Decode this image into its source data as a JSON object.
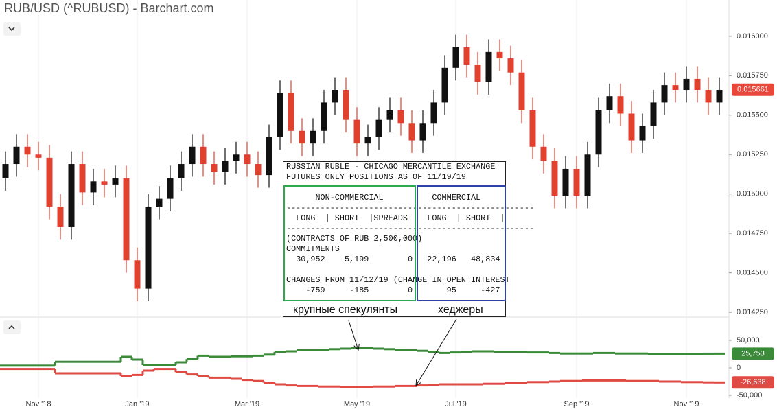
{
  "chart_data": [
    {
      "type": "candlestick",
      "title": "RUB/USD (^RUBUSD) - Barchart.com",
      "categories": [
        null,
        null,
        null,
        "Nov '18",
        null,
        null,
        null,
        null,
        null,
        null,
        null,
        null,
        "Jan '19",
        null,
        null,
        null,
        null,
        null,
        null,
        null,
        null,
        null,
        "Mar '19",
        null,
        null,
        null,
        null,
        null,
        null,
        null,
        null,
        null,
        "May '19",
        null,
        null,
        null,
        null,
        null,
        null,
        null,
        null,
        "Jul '19",
        null,
        null,
        null,
        null,
        null,
        null,
        null,
        null,
        null,
        null,
        "Sep '19",
        null,
        null,
        null,
        null,
        null,
        null,
        null,
        null,
        null,
        "Nov '19",
        null,
        null,
        null
      ],
      "open": [
        0.0151,
        0.01519,
        0.0153,
        0.01525,
        0.01523,
        0.01492,
        0.01479,
        0.01519,
        0.01501,
        0.01508,
        0.01506,
        0.0151,
        0.01458,
        0.0144,
        0.01492,
        0.01497,
        0.0151,
        0.01519,
        0.0153,
        0.01519,
        0.01514,
        0.01521,
        0.01525,
        0.01519,
        0.01512,
        0.01536,
        0.01564,
        0.0154,
        0.01532,
        0.0154,
        0.01558,
        0.01566,
        0.01547,
        0.01532,
        0.01536,
        0.01547,
        0.01553,
        0.01545,
        0.01534,
        0.01545,
        0.01558,
        0.0158,
        0.01593,
        0.01582,
        0.01571,
        0.0159,
        0.01586,
        0.01577,
        0.01553,
        0.0153,
        0.01521,
        0.01499,
        0.01516,
        0.01499,
        0.01525,
        0.01553,
        0.01562,
        0.01551,
        0.01534,
        0.01543,
        0.01558,
        0.01569,
        0.01566,
        0.01573,
        0.01566,
        0.01558
      ],
      "high": [
        0.01527,
        0.01538,
        0.01538,
        0.01533,
        0.01531,
        0.015,
        0.01527,
        0.01527,
        0.01516,
        0.01516,
        0.01518,
        0.01518,
        0.01466,
        0.015,
        0.01505,
        0.01518,
        0.01527,
        0.01538,
        0.01538,
        0.01527,
        0.01529,
        0.01533,
        0.01533,
        0.01527,
        0.01544,
        0.01572,
        0.01572,
        0.01548,
        0.01548,
        0.01566,
        0.01574,
        0.01574,
        0.01555,
        0.01544,
        0.01555,
        0.01561,
        0.01561,
        0.01553,
        0.01553,
        0.01566,
        0.01588,
        0.01601,
        0.01601,
        0.0159,
        0.01598,
        0.01598,
        0.01594,
        0.01585,
        0.01561,
        0.01538,
        0.01529,
        0.01524,
        0.01524,
        0.01533,
        0.01561,
        0.0157,
        0.0157,
        0.01559,
        0.01551,
        0.01566,
        0.01577,
        0.01577,
        0.01581,
        0.01581,
        0.01574,
        0.01574
      ],
      "low": [
        0.01502,
        0.01511,
        0.01517,
        0.01515,
        0.01484,
        0.01471,
        0.01471,
        0.01493,
        0.01493,
        0.01498,
        0.01498,
        0.0145,
        0.01432,
        0.01432,
        0.01484,
        0.01489,
        0.01502,
        0.01511,
        0.01511,
        0.01506,
        0.01506,
        0.01513,
        0.01511,
        0.01504,
        0.01504,
        0.01528,
        0.01532,
        0.01524,
        0.01524,
        0.01532,
        0.0155,
        0.01539,
        0.01524,
        0.01524,
        0.01528,
        0.01539,
        0.01537,
        0.01526,
        0.01526,
        0.01537,
        0.0155,
        0.01572,
        0.01574,
        0.01563,
        0.01563,
        0.01578,
        0.01569,
        0.01545,
        0.01522,
        0.01513,
        0.01491,
        0.01491,
        0.01491,
        0.01491,
        0.01517,
        0.01545,
        0.01543,
        0.01526,
        0.01526,
        0.01535,
        0.0155,
        0.01558,
        0.01558,
        0.01558,
        0.0155,
        0.0155
      ],
      "close": [
        0.01519,
        0.0153,
        0.01525,
        0.01523,
        0.01492,
        0.01479,
        0.01519,
        0.01501,
        0.01508,
        0.01506,
        0.0151,
        0.01458,
        0.0144,
        0.01492,
        0.01497,
        0.0151,
        0.01519,
        0.0153,
        0.01519,
        0.01514,
        0.01521,
        0.01525,
        0.01519,
        0.01512,
        0.01536,
        0.01564,
        0.0154,
        0.01532,
        0.0154,
        0.01558,
        0.01566,
        0.01547,
        0.01532,
        0.01536,
        0.01547,
        0.01553,
        0.01545,
        0.01534,
        0.01545,
        0.01558,
        0.0158,
        0.01593,
        0.01582,
        0.01571,
        0.0159,
        0.01586,
        0.01577,
        0.01553,
        0.0153,
        0.01521,
        0.01499,
        0.01516,
        0.01499,
        0.01525,
        0.01553,
        0.01562,
        0.01551,
        0.01534,
        0.01543,
        0.01558,
        0.01569,
        0.01566,
        0.01573,
        0.01566,
        0.01558,
        0.01566
      ],
      "up_color": "#111111",
      "down_color": "#e0412f",
      "last_value": 0.015661,
      "last_color": "#e8483a",
      "ylim": [
        0.01422,
        0.01623
      ],
      "yticks": [
        {
          "value": 0.01425,
          "label": "0.014250"
        },
        {
          "value": 0.0145,
          "label": "0.014500"
        },
        {
          "value": 0.01475,
          "label": "0.014750"
        },
        {
          "value": 0.015,
          "label": "0.015000"
        },
        {
          "value": 0.01525,
          "label": "0.015250"
        },
        {
          "value": 0.0155,
          "label": "0.015500"
        },
        {
          "value": 0.01575,
          "label": "0.015750"
        },
        {
          "value": 0.016,
          "label": "0.016000"
        }
      ],
      "grid": true
    },
    {
      "type": "step",
      "series": [
        {
          "color": "#3a8a3a",
          "values": [
            4000,
            4000,
            4000,
            4000,
            4000,
            11000,
            11000,
            11000,
            11000,
            11000,
            11000,
            20000,
            15000,
            5000,
            5000,
            5000,
            10000,
            16000,
            22000,
            20000,
            20000,
            21000,
            21000,
            22000,
            24000,
            29000,
            30000,
            32000,
            32000,
            33000,
            34000,
            35000,
            36000,
            36000,
            35000,
            34000,
            33000,
            32000,
            31000,
            29000,
            27000,
            28000,
            29000,
            30000,
            30000,
            29000,
            29000,
            29000,
            28000,
            28000,
            27000,
            26000,
            26000,
            26000,
            27000,
            27000,
            26000,
            26000,
            26000,
            25000,
            25000,
            25000,
            25000,
            25000,
            25700,
            25753
          ],
          "value_labels": [
            null,
            null,
            null,
            null,
            null,
            null,
            null,
            null,
            null,
            null,
            null,
            null,
            null,
            null,
            null,
            null,
            null,
            null,
            null,
            null,
            null,
            null,
            null,
            null,
            null,
            null,
            null,
            null,
            null,
            null,
            null,
            null,
            null,
            null,
            null,
            null,
            null,
            null,
            null,
            null,
            null,
            null,
            null,
            null,
            null,
            null,
            null,
            null,
            null,
            null,
            null,
            null,
            null,
            null,
            null,
            null,
            null,
            null,
            null,
            null,
            null,
            null,
            null,
            null,
            null,
            "25,753"
          ]
        },
        {
          "color": "#e04a44",
          "values": [
            -2000,
            -2000,
            -2000,
            -2000,
            -2000,
            -10000,
            -10000,
            -10000,
            -10000,
            -10000,
            -10000,
            -15000,
            -13000,
            -5000,
            -2000,
            -2000,
            -8000,
            -12000,
            -15000,
            -18000,
            -18000,
            -20000,
            -22000,
            -24000,
            -27000,
            -30000,
            -32000,
            -33000,
            -33000,
            -34000,
            -34000,
            -35000,
            -35000,
            -35000,
            -34000,
            -34000,
            -33000,
            -33000,
            -32000,
            -31000,
            -30000,
            -30000,
            -30000,
            -30000,
            -29000,
            -29000,
            -28000,
            -27000,
            -26000,
            -26000,
            -25000,
            -24000,
            -24000,
            -23000,
            -23000,
            -23000,
            -23000,
            -24000,
            -24000,
            -24000,
            -25000,
            -25000,
            -26000,
            -26000,
            -26500,
            -26638
          ],
          "value_labels": [
            null,
            null,
            null,
            null,
            null,
            null,
            null,
            null,
            null,
            null,
            null,
            null,
            null,
            null,
            null,
            null,
            null,
            null,
            null,
            null,
            null,
            null,
            null,
            null,
            null,
            null,
            null,
            null,
            null,
            null,
            null,
            null,
            null,
            null,
            null,
            null,
            null,
            null,
            null,
            null,
            null,
            null,
            null,
            null,
            null,
            null,
            null,
            null,
            null,
            null,
            null,
            null,
            null,
            null,
            null,
            null,
            null,
            null,
            null,
            null,
            null,
            null,
            null,
            null,
            null,
            "-26,638"
          ]
        }
      ],
      "ylim": [
        -55000,
        92500
      ],
      "yticks": [
        {
          "value": 50000,
          "label": "50,000"
        },
        0,
        {
          "value": -50000,
          "label": "-50,000"
        }
      ]
    }
  ],
  "cot_report": {
    "lines": [
      "RUSSIAN RUBLE - CHICAGO MERCANTILE EXCHANGE",
      "FUTURES ONLY POSITIONS AS OF 11/19/19",
      "      NON-COMMERCIAL          COMMERCIAL",
      "---------------------------------------------------",
      "  LONG  | SHORT  |SPREADS    LONG  | SHORT  |",
      "---------------------------------------------------",
      "(CONTRACTS OF RUB 2,500,000)",
      "COMMITMENTS",
      "  30,952    5,199        0   22,196   48,834",
      "CHANGES FROM 11/12/19 (CHANGE IN OPEN INTEREST",
      "    -759     -185        0       95     -427"
    ]
  },
  "annotations": [
    "крупные спекулянты",
    "хеджеры"
  ]
}
